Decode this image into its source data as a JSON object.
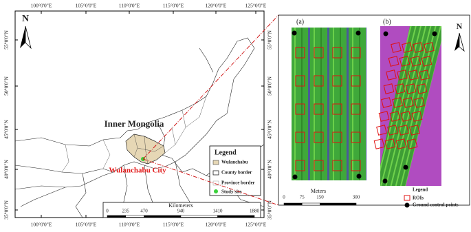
{
  "map": {
    "longitude_labels": [
      "100°0'0\"E",
      "105°0'0\"E",
      "110°0'0\"E",
      "115°0'0\"E",
      "120°0'0\"E",
      "125°0'0\"E"
    ],
    "latitude_labels": [
      "55°0'0\"N",
      "50°0'0\"N",
      "45°0'0\"N",
      "40°0'0\"N",
      "35°0'0\"N"
    ],
    "north": "N",
    "region_label": "Inner Mongolia",
    "city_label": "Wulanchabu City",
    "legend": {
      "title": "Legend",
      "items": [
        "Wulanchabu",
        "County border",
        "Province border",
        "Study site"
      ]
    },
    "scale": {
      "unit": "Kilometers",
      "ticks": [
        0,
        235,
        470,
        940,
        1410,
        1880
      ]
    }
  },
  "detail": {
    "panels": [
      "(a)",
      "(b)"
    ],
    "north": "N",
    "scale": {
      "unit": "Meters",
      "ticks": [
        0,
        75,
        150,
        300
      ]
    },
    "legend": {
      "title": "Legend",
      "items": [
        "ROIs",
        "Ground control points"
      ]
    }
  }
}
